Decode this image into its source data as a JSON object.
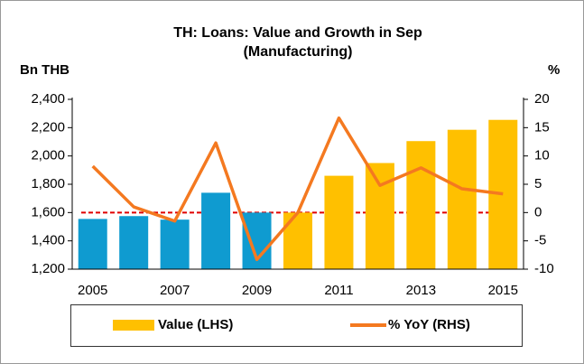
{
  "chart_data": {
    "type": "bar_line",
    "title": "TH: Loans: Value and Growth in Sep",
    "subtitle": "(Manufacturing)",
    "y_label": "Bn THB",
    "y2_label": "%",
    "categories": [
      "2005",
      null,
      "2007",
      null,
      "2009",
      null,
      "2011",
      null,
      "2013",
      null,
      "2015"
    ],
    "series": [
      {
        "name": "Value (LHS)",
        "type": "bar",
        "color": "#ffc000",
        "colors": [
          "#0f9bd0",
          "#0f9bd0",
          "#0f9bd0",
          "#0f9bd0",
          "#0f9bd0",
          "#ffc000",
          "#ffc000",
          "#ffc000",
          "#ffc000",
          "#ffc000",
          "#ffc000"
        ],
        "values": [
          1555,
          1575,
          1550,
          1740,
          1600,
          1600,
          1860,
          1950,
          2105,
          2185,
          2255
        ]
      },
      {
        "name": "% YoY (RHS)",
        "type": "line",
        "axis": "y2",
        "color": "#f47920",
        "values": [
          8.2,
          1.0,
          -1.5,
          12.3,
          -8.3,
          0.0,
          16.7,
          4.8,
          7.9,
          4.2,
          3.3
        ]
      }
    ],
    "ylim": [
      1200,
      2400
    ],
    "yticks": [
      {
        "value": 1200,
        "label": "1,200"
      },
      {
        "value": 1400,
        "label": "1,400"
      },
      {
        "value": 1600,
        "label": "1,600"
      },
      {
        "value": 1800,
        "label": "1,800"
      },
      {
        "value": 2000,
        "label": "2,000"
      },
      {
        "value": 2200,
        "label": "2,200"
      },
      {
        "value": 2400,
        "label": "2,400"
      }
    ],
    "y2lim": [
      -10,
      20
    ],
    "y2ticks": [
      -10,
      -5,
      0,
      5,
      10,
      15,
      20
    ],
    "reference_line": {
      "axis": "y2",
      "value": 0,
      "color": "#e00000"
    },
    "legend": "bottom"
  }
}
